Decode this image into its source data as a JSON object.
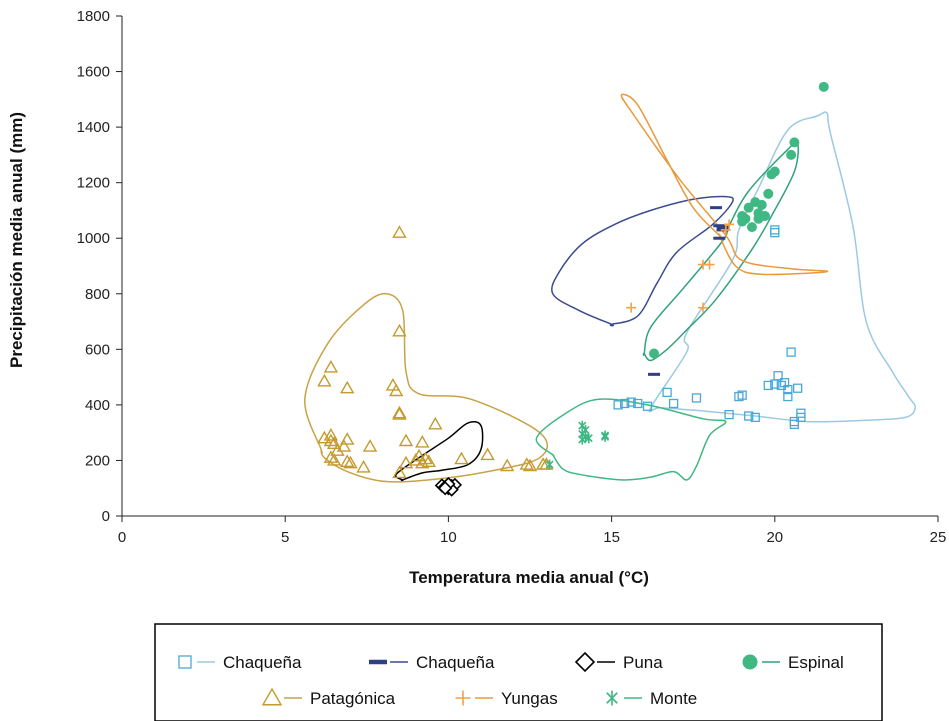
{
  "chart_data": {
    "type": "scatter",
    "xlabel": "Temperatura media anual (°C)",
    "ylabel": "Precipitación media anual (mm)",
    "xlim": [
      0,
      25
    ],
    "ylim": [
      0,
      1800
    ],
    "xticks": [
      "0",
      "5",
      "10",
      "15",
      "20",
      "25"
    ],
    "yticks": [
      "0",
      "200",
      "400",
      "600",
      "800",
      "1000",
      "1200",
      "1400",
      "1600",
      "1800"
    ],
    "grid": false,
    "legend_position": "bottom",
    "series": [
      {
        "name": "Chaqueña",
        "marker": "square-open",
        "color": "#4aa8d8",
        "hull_color": "#9dc9e3",
        "points": [
          [
            15.2,
            400
          ],
          [
            15.4,
            405
          ],
          [
            15.6,
            410
          ],
          [
            15.8,
            405
          ],
          [
            16.1,
            395
          ],
          [
            16.7,
            445
          ],
          [
            16.9,
            405
          ],
          [
            17.6,
            425
          ],
          [
            18.6,
            365
          ],
          [
            18.9,
            430
          ],
          [
            19.0,
            435
          ],
          [
            19.2,
            360
          ],
          [
            19.4,
            355
          ],
          [
            19.8,
            470
          ],
          [
            20.0,
            475
          ],
          [
            20.1,
            505
          ],
          [
            20.2,
            470
          ],
          [
            20.3,
            480
          ],
          [
            20.4,
            455
          ],
          [
            20.4,
            430
          ],
          [
            20.5,
            590
          ],
          [
            20.6,
            330
          ],
          [
            20.6,
            340
          ],
          [
            20.7,
            460
          ],
          [
            20.8,
            370
          ],
          [
            20.8,
            355
          ],
          [
            20.0,
            1030
          ],
          [
            20.0,
            1020
          ]
        ],
        "hull": [
          [
            16.2,
            390
          ],
          [
            17.3,
            590
          ],
          [
            17.3,
            660
          ],
          [
            18.7,
            920
          ],
          [
            18.9,
            1030
          ],
          [
            19.5,
            1180
          ],
          [
            20.4,
            1390
          ],
          [
            21.3,
            1440
          ],
          [
            21.6,
            1450
          ],
          [
            21.7,
            1380
          ],
          [
            22.4,
            1040
          ],
          [
            22.8,
            700
          ],
          [
            23.6,
            520
          ],
          [
            24.1,
            430
          ],
          [
            24.3,
            390
          ],
          [
            24.0,
            355
          ],
          [
            22.8,
            345
          ],
          [
            21.0,
            340
          ],
          [
            19.4,
            360
          ],
          [
            17.6,
            380
          ],
          [
            16.5,
            390
          ]
        ]
      },
      {
        "name": "Chaqueña",
        "marker": "dash",
        "color": "#2e3f84",
        "hull_color": "#3c4b91",
        "points": [
          [
            18.2,
            1110
          ],
          [
            18.3,
            1045
          ],
          [
            18.4,
            1040
          ],
          [
            18.4,
            1030
          ],
          [
            18.3,
            1000
          ],
          [
            16.3,
            510
          ]
        ],
        "hull": [
          [
            15.0,
            690
          ],
          [
            14.0,
            740
          ],
          [
            13.2,
            800
          ],
          [
            13.4,
            880
          ],
          [
            14.1,
            980
          ],
          [
            15.1,
            1050
          ],
          [
            16.2,
            1100
          ],
          [
            17.5,
            1140
          ],
          [
            18.5,
            1150
          ],
          [
            18.7,
            1130
          ],
          [
            18.1,
            1050
          ],
          [
            17.0,
            950
          ],
          [
            16.4,
            840
          ],
          [
            15.8,
            720
          ],
          [
            15.0,
            690
          ]
        ]
      },
      {
        "name": "Puna",
        "marker": "diamond-open",
        "color": "#000000",
        "hull_color": "#000000",
        "points": [
          [
            9.8,
            110
          ],
          [
            9.9,
            105
          ],
          [
            10.0,
            100
          ],
          [
            10.1,
            108
          ],
          [
            10.2,
            112
          ],
          [
            10.1,
            95
          ],
          [
            10.0,
            115
          ],
          [
            9.9,
            100
          ]
        ],
        "hull": [
          [
            8.6,
            130
          ],
          [
            8.4,
            150
          ],
          [
            9.1,
            210
          ],
          [
            10.0,
            280
          ],
          [
            10.6,
            335
          ],
          [
            11.0,
            325
          ],
          [
            11.0,
            240
          ],
          [
            10.6,
            185
          ],
          [
            9.8,
            165
          ],
          [
            9.2,
            155
          ],
          [
            8.6,
            130
          ]
        ]
      },
      {
        "name": "Espinal",
        "marker": "circle-filled",
        "color": "#3fb883",
        "hull_color": "#2fa37a",
        "points": [
          [
            21.5,
            1545
          ],
          [
            20.6,
            1345
          ],
          [
            20.5,
            1300
          ],
          [
            20.0,
            1240
          ],
          [
            19.9,
            1230
          ],
          [
            19.8,
            1160
          ],
          [
            19.4,
            1130
          ],
          [
            19.6,
            1120
          ],
          [
            19.2,
            1110
          ],
          [
            19.5,
            1090
          ],
          [
            19.0,
            1080
          ],
          [
            19.1,
            1070
          ],
          [
            19.0,
            1060
          ],
          [
            19.3,
            1040
          ],
          [
            19.5,
            1070
          ],
          [
            19.7,
            1080
          ],
          [
            16.3,
            585
          ]
        ],
        "hull": [
          [
            16.0,
            585
          ],
          [
            16.2,
            680
          ],
          [
            17.2,
            820
          ],
          [
            18.4,
            990
          ],
          [
            18.6,
            1045
          ],
          [
            19.2,
            1170
          ],
          [
            20.4,
            1320
          ],
          [
            20.7,
            1340
          ],
          [
            20.6,
            1240
          ],
          [
            19.9,
            1080
          ],
          [
            19.3,
            960
          ],
          [
            18.2,
            780
          ],
          [
            17.3,
            670
          ],
          [
            16.7,
            600
          ],
          [
            16.2,
            560
          ],
          [
            16.0,
            585
          ]
        ]
      },
      {
        "name": "Patagónica",
        "marker": "triangle-open",
        "color": "#c59a2d",
        "hull_color": "#c9a246",
        "points": [
          [
            8.5,
            1020
          ],
          [
            8.5,
            665
          ],
          [
            6.2,
            485
          ],
          [
            6.4,
            535
          ],
          [
            6.9,
            460
          ],
          [
            8.3,
            470
          ],
          [
            8.4,
            450
          ],
          [
            8.5,
            370
          ],
          [
            8.5,
            365
          ],
          [
            9.6,
            330
          ],
          [
            6.2,
            280
          ],
          [
            6.4,
            290
          ],
          [
            6.4,
            270
          ],
          [
            6.5,
            260
          ],
          [
            6.9,
            275
          ],
          [
            6.6,
            235
          ],
          [
            6.8,
            250
          ],
          [
            7.6,
            250
          ],
          [
            8.7,
            270
          ],
          [
            9.2,
            265
          ],
          [
            6.4,
            210
          ],
          [
            6.5,
            200
          ],
          [
            6.9,
            195
          ],
          [
            7.0,
            190
          ],
          [
            7.4,
            175
          ],
          [
            8.7,
            190
          ],
          [
            9.0,
            200
          ],
          [
            9.1,
            215
          ],
          [
            9.3,
            205
          ],
          [
            9.4,
            195
          ],
          [
            9.2,
            190
          ],
          [
            8.5,
            155
          ],
          [
            10.4,
            205
          ],
          [
            11.2,
            220
          ],
          [
            11.8,
            180
          ],
          [
            12.4,
            185
          ],
          [
            12.5,
            180
          ],
          [
            12.9,
            185
          ],
          [
            13.0,
            185
          ]
        ],
        "hull": [
          [
            6.1,
            240
          ],
          [
            5.6,
            420
          ],
          [
            6.3,
            620
          ],
          [
            7.4,
            760
          ],
          [
            8.1,
            800
          ],
          [
            8.6,
            740
          ],
          [
            8.7,
            520
          ],
          [
            9.1,
            440
          ],
          [
            10.7,
            420
          ],
          [
            12.8,
            300
          ],
          [
            12.8,
            210
          ],
          [
            11.2,
            160
          ],
          [
            9.4,
            130
          ],
          [
            8.0,
            125
          ],
          [
            6.9,
            160
          ],
          [
            6.2,
            210
          ],
          [
            6.1,
            240
          ]
        ]
      },
      {
        "name": "Yungas",
        "marker": "plus",
        "color": "#f2a24a",
        "hull_color": "#e89a3b",
        "points": [
          [
            15.6,
            750
          ],
          [
            17.8,
            905
          ],
          [
            18.0,
            905
          ],
          [
            17.8,
            750
          ],
          [
            18.6,
            1050
          ],
          [
            18.5,
            1030
          ]
        ],
        "hull": [
          [
            18.3,
            1010
          ],
          [
            17.5,
            1110
          ],
          [
            16.7,
            1280
          ],
          [
            15.8,
            1480
          ],
          [
            15.3,
            1515
          ],
          [
            15.7,
            1440
          ],
          [
            17.1,
            1210
          ],
          [
            18.5,
            1010
          ],
          [
            19.0,
            920
          ],
          [
            20.5,
            890
          ],
          [
            21.6,
            880
          ],
          [
            19.6,
            870
          ],
          [
            18.8,
            900
          ],
          [
            18.3,
            1010
          ]
        ]
      },
      {
        "name": "Monte",
        "marker": "asterisk",
        "color": "#3fb883",
        "hull_color": "#3fb883",
        "points": [
          [
            14.1,
            325
          ],
          [
            14.2,
            310
          ],
          [
            14.1,
            295
          ],
          [
            14.2,
            285
          ],
          [
            14.1,
            275
          ],
          [
            14.3,
            280
          ],
          [
            14.8,
            290
          ],
          [
            14.8,
            285
          ],
          [
            13.1,
            185
          ]
        ],
        "hull": [
          [
            13.2,
            220
          ],
          [
            12.7,
            280
          ],
          [
            13.6,
            370
          ],
          [
            14.6,
            420
          ],
          [
            16.1,
            400
          ],
          [
            17.8,
            350
          ],
          [
            18.5,
            340
          ],
          [
            18.0,
            290
          ],
          [
            17.6,
            180
          ],
          [
            17.3,
            130
          ],
          [
            16.9,
            160
          ],
          [
            16.2,
            140
          ],
          [
            15.3,
            130
          ],
          [
            14.0,
            150
          ],
          [
            13.5,
            170
          ],
          [
            13.2,
            220
          ]
        ]
      }
    ]
  }
}
